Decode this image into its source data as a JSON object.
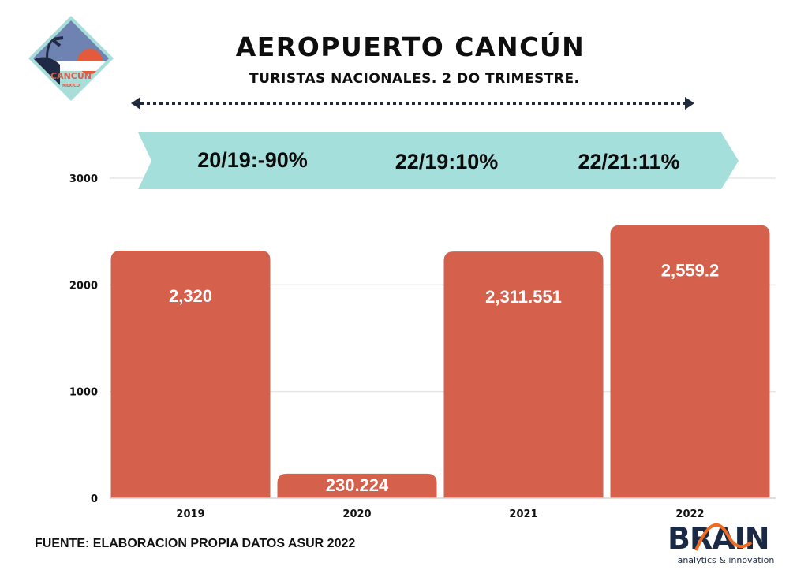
{
  "header": {
    "title": "AEROPUERTO CANCÚN",
    "subtitle": "TURISTAS NACIONALES. 2 DO TRIMESTRE."
  },
  "logo": {
    "main": "CANCUN",
    "sub": "MEXICO"
  },
  "banner": {
    "items": [
      "20/19:-90%",
      "22/19:10%",
      "22/21:11%"
    ],
    "color": "#a4dfdb"
  },
  "footer": {
    "source": "FUENTE: ELABORACION PROPIA DATOS ASUR 2022",
    "brand": "BRAIN",
    "brand_tagline": "analytics & innovation"
  },
  "colors": {
    "bar": "#d5604b",
    "grid": "#e6e6e6",
    "arrow": "#1f2a3c",
    "brand_dark": "#1b2a44",
    "brand_orange": "#f06a1f"
  },
  "chart_data": {
    "type": "bar",
    "title": "AEROPUERTO CANCÚN",
    "subtitle": "TURISTAS NACIONALES. 2 DO TRIMESTRE.",
    "xlabel": "",
    "ylabel": "",
    "categories": [
      "2019",
      "2020",
      "2021",
      "2022"
    ],
    "values": [
      2320,
      230.224,
      2311.551,
      2559.2
    ],
    "data_labels": [
      "2,320",
      "230.224",
      "2,311.551",
      "2,559.2"
    ],
    "yticks": [
      0,
      1000,
      2000,
      3000
    ],
    "ylim": [
      0,
      3000
    ],
    "grid": true,
    "legend": "none"
  }
}
